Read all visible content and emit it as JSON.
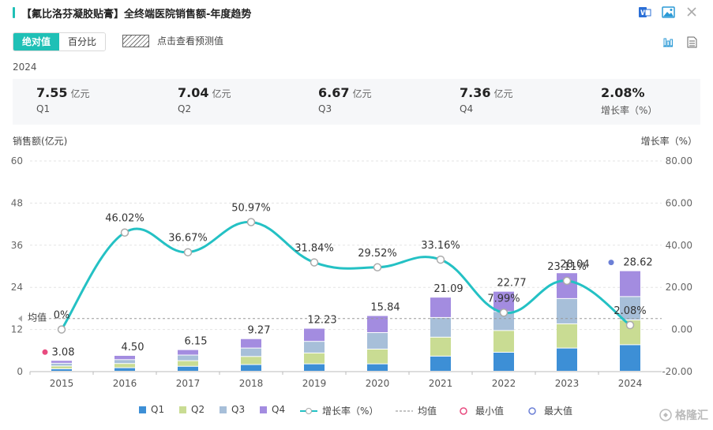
{
  "header": {
    "title": "【氟比洛芬凝胶贴膏】全终端医院销售额-年度趋势",
    "icons": [
      "word-export-icon",
      "image-export-icon",
      "close-icon"
    ]
  },
  "controls": {
    "absolute_label": "绝对值",
    "percent_label": "百分比",
    "forecast_label": "点击查看预测值",
    "view_icons": [
      "bar-chart-icon",
      "table-icon"
    ]
  },
  "summary": {
    "year": "2024",
    "cards": [
      {
        "value": "7.55",
        "unit": "亿元",
        "label": "Q1"
      },
      {
        "value": "7.04",
        "unit": "亿元",
        "label": "Q2"
      },
      {
        "value": "6.67",
        "unit": "亿元",
        "label": "Q3"
      },
      {
        "value": "7.36",
        "unit": "亿元",
        "label": "Q4"
      },
      {
        "value": "2.08%",
        "unit": "",
        "label": "增长率（%）"
      }
    ]
  },
  "colors": {
    "accent": "#1fc0b6",
    "q1": "#3d8fd6",
    "q2": "#c9dc93",
    "q3": "#a7bfd9",
    "q4": "#a38ce0",
    "growth_line": "#24c1c4",
    "min_marker": "#e84a7f",
    "max_marker": "#6b7fd6"
  },
  "chart_data": {
    "type": "bar",
    "stacked": true,
    "categories": [
      "2015",
      "2016",
      "2017",
      "2018",
      "2019",
      "2020",
      "2021",
      "2022",
      "2023",
      "2024"
    ],
    "ylabel": "销售额(亿元)",
    "y2label": "增长率（%）",
    "ylim": [
      0,
      60
    ],
    "yticks": [
      "0",
      "12",
      "24",
      "36",
      "48",
      "60"
    ],
    "y2lim": [
      -20,
      80
    ],
    "y2ticks": [
      "-20.00",
      "0.00",
      "20.00",
      "40.00",
      "60.00",
      "80.00"
    ],
    "series": [
      {
        "name": "Q1",
        "values": [
          0.68,
          1.0,
          1.4,
          1.9,
          2.1,
          2.1,
          4.3,
          5.4,
          6.6,
          7.55
        ]
      },
      {
        "name": "Q2",
        "values": [
          0.8,
          1.2,
          1.6,
          2.3,
          3.1,
          4.2,
          5.4,
          6.2,
          6.9,
          7.04
        ]
      },
      {
        "name": "Q3",
        "values": [
          0.8,
          1.1,
          1.6,
          2.4,
          3.3,
          4.7,
          5.6,
          5.4,
          7.2,
          6.67
        ]
      },
      {
        "name": "Q4",
        "values": [
          0.8,
          1.2,
          1.55,
          2.67,
          3.73,
          4.84,
          5.79,
          5.77,
          7.34,
          7.36
        ]
      }
    ],
    "totals": [
      "3.08",
      "4.50",
      "6.15",
      "9.27",
      "12.23",
      "15.84",
      "21.09",
      "22.77",
      "28.04",
      "28.62"
    ],
    "growth": {
      "name": "增长率（%）",
      "values": [
        0,
        46.02,
        36.67,
        50.97,
        31.84,
        29.52,
        33.16,
        7.99,
        23.11,
        2.08
      ],
      "labels": [
        "0%",
        "46.02%",
        "36.67%",
        "50.97%",
        "31.84%",
        "29.52%",
        "33.16%",
        "7.99%",
        "23.11%",
        "2.08%"
      ]
    },
    "average": {
      "name": "均值",
      "value": 5.2
    },
    "min_index": 0,
    "max_index": 9,
    "legend": [
      "Q1",
      "Q2",
      "Q3",
      "Q4",
      "增长率（%）",
      "均值",
      "最小值",
      "最大值"
    ],
    "grid": "horizontal dashed",
    "legend_position": "bottom"
  },
  "watermark": "格隆汇"
}
